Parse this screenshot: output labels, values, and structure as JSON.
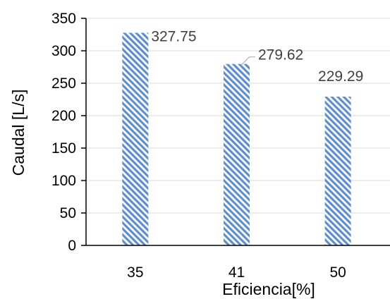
{
  "chart_data": {
    "type": "bar",
    "categories": [
      "35",
      "41",
      "50"
    ],
    "values": [
      327.75,
      279.62,
      229.29
    ],
    "data_labels": [
      "327.75",
      "279.62",
      "229.29"
    ],
    "title": "",
    "xlabel": "Eficiencia[%]",
    "ylabel": "Caudal [L/s]",
    "ylim": [
      0,
      350
    ],
    "yticks": [
      "0",
      "50",
      "100",
      "150",
      "200",
      "250",
      "300",
      "350"
    ],
    "grid": true,
    "legend": "none",
    "bar_color": "#5b8fd0",
    "bar_pattern": "diagonal hatch"
  }
}
